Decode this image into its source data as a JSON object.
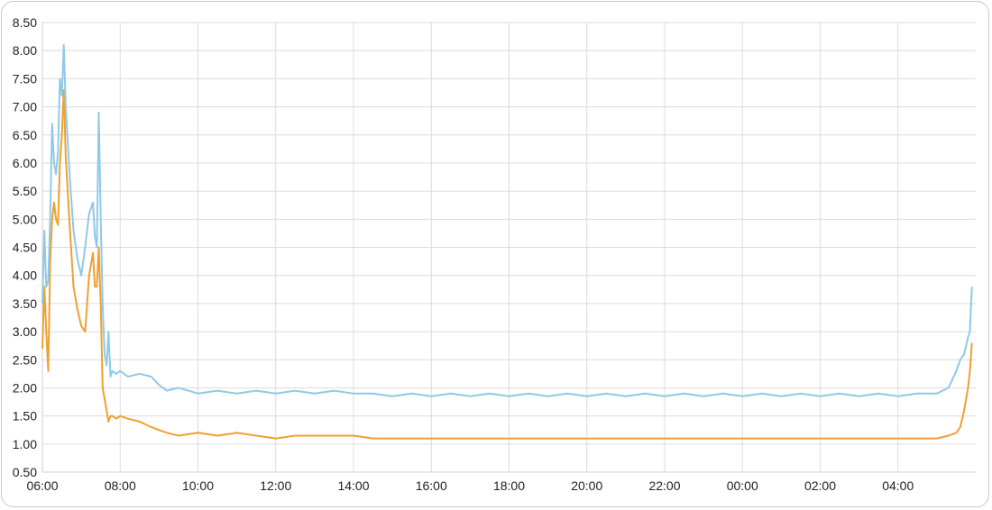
{
  "chart_data": {
    "type": "line",
    "title": "",
    "xlabel": "",
    "ylabel": "",
    "ylim": [
      0.5,
      8.5
    ],
    "grid": true,
    "legend": "none",
    "y_ticks": [
      "0.50",
      "1.00",
      "1.50",
      "2.00",
      "2.50",
      "3.00",
      "3.50",
      "4.00",
      "4.50",
      "5.00",
      "5.50",
      "6.00",
      "6.50",
      "7.00",
      "7.50",
      "8.00",
      "8.50"
    ],
    "x_ticks": [
      "06:00",
      "08:00",
      "10:00",
      "12:00",
      "14:00",
      "16:00",
      "18:00",
      "20:00",
      "22:00",
      "00:00",
      "02:00",
      "04:00"
    ],
    "x_range_hours": [
      0,
      24
    ],
    "series": [
      {
        "color": "#8ecae6",
        "points": [
          [
            0,
            3.5
          ],
          [
            0.05,
            4.8
          ],
          [
            0.1,
            3.8
          ],
          [
            0.15,
            3.9
          ],
          [
            0.2,
            5.0
          ],
          [
            0.25,
            6.7
          ],
          [
            0.3,
            6.0
          ],
          [
            0.35,
            5.8
          ],
          [
            0.4,
            6.2
          ],
          [
            0.45,
            7.5
          ],
          [
            0.5,
            7.2
          ],
          [
            0.55,
            8.1
          ],
          [
            0.6,
            7.0
          ],
          [
            0.7,
            5.8
          ],
          [
            0.8,
            4.8
          ],
          [
            0.9,
            4.3
          ],
          [
            1.0,
            4.0
          ],
          [
            1.1,
            4.5
          ],
          [
            1.2,
            5.1
          ],
          [
            1.3,
            5.3
          ],
          [
            1.35,
            4.7
          ],
          [
            1.4,
            4.5
          ],
          [
            1.45,
            6.9
          ],
          [
            1.5,
            5.0
          ],
          [
            1.55,
            3.5
          ],
          [
            1.6,
            2.6
          ],
          [
            1.65,
            2.4
          ],
          [
            1.7,
            3.0
          ],
          [
            1.75,
            2.2
          ],
          [
            1.8,
            2.3
          ],
          [
            1.9,
            2.25
          ],
          [
            2.0,
            2.3
          ],
          [
            2.2,
            2.2
          ],
          [
            2.5,
            2.25
          ],
          [
            2.8,
            2.2
          ],
          [
            3.0,
            2.05
          ],
          [
            3.2,
            1.95
          ],
          [
            3.5,
            2.0
          ],
          [
            4.0,
            1.9
          ],
          [
            4.5,
            1.95
          ],
          [
            5.0,
            1.9
          ],
          [
            5.5,
            1.95
          ],
          [
            6.0,
            1.9
          ],
          [
            6.5,
            1.95
          ],
          [
            7.0,
            1.9
          ],
          [
            7.5,
            1.95
          ],
          [
            8.0,
            1.9
          ],
          [
            8.5,
            1.9
          ],
          [
            9.0,
            1.85
          ],
          [
            9.5,
            1.9
          ],
          [
            10.0,
            1.85
          ],
          [
            10.5,
            1.9
          ],
          [
            11.0,
            1.85
          ],
          [
            11.5,
            1.9
          ],
          [
            12.0,
            1.85
          ],
          [
            12.5,
            1.9
          ],
          [
            13.0,
            1.85
          ],
          [
            13.5,
            1.9
          ],
          [
            14.0,
            1.85
          ],
          [
            14.5,
            1.9
          ],
          [
            15.0,
            1.85
          ],
          [
            15.5,
            1.9
          ],
          [
            16.0,
            1.85
          ],
          [
            16.5,
            1.9
          ],
          [
            17.0,
            1.85
          ],
          [
            17.5,
            1.9
          ],
          [
            18.0,
            1.85
          ],
          [
            18.5,
            1.9
          ],
          [
            19.0,
            1.85
          ],
          [
            19.5,
            1.9
          ],
          [
            20.0,
            1.85
          ],
          [
            20.5,
            1.9
          ],
          [
            21.0,
            1.85
          ],
          [
            21.5,
            1.9
          ],
          [
            22.0,
            1.85
          ],
          [
            22.5,
            1.9
          ],
          [
            23.0,
            1.9
          ],
          [
            23.3,
            2.0
          ],
          [
            23.5,
            2.3
          ],
          [
            23.6,
            2.5
          ],
          [
            23.7,
            2.6
          ],
          [
            23.8,
            2.9
          ],
          [
            23.85,
            3.0
          ],
          [
            23.9,
            3.8
          ]
        ]
      },
      {
        "color": "#f0a030",
        "points": [
          [
            0,
            2.7
          ],
          [
            0.05,
            3.8
          ],
          [
            0.1,
            3.0
          ],
          [
            0.15,
            2.3
          ],
          [
            0.2,
            4.2
          ],
          [
            0.25,
            5.0
          ],
          [
            0.3,
            5.3
          ],
          [
            0.35,
            5.0
          ],
          [
            0.4,
            4.9
          ],
          [
            0.45,
            6.0
          ],
          [
            0.5,
            6.5
          ],
          [
            0.55,
            7.3
          ],
          [
            0.6,
            6.1
          ],
          [
            0.7,
            4.9
          ],
          [
            0.8,
            3.8
          ],
          [
            0.9,
            3.4
          ],
          [
            1.0,
            3.1
          ],
          [
            1.1,
            3.0
          ],
          [
            1.2,
            4.0
          ],
          [
            1.3,
            4.4
          ],
          [
            1.35,
            3.8
          ],
          [
            1.4,
            3.8
          ],
          [
            1.45,
            4.5
          ],
          [
            1.5,
            3.5
          ],
          [
            1.55,
            2.0
          ],
          [
            1.6,
            1.8
          ],
          [
            1.65,
            1.6
          ],
          [
            1.7,
            1.4
          ],
          [
            1.75,
            1.5
          ],
          [
            1.8,
            1.5
          ],
          [
            1.9,
            1.45
          ],
          [
            2.0,
            1.5
          ],
          [
            2.2,
            1.45
          ],
          [
            2.5,
            1.4
          ],
          [
            2.8,
            1.3
          ],
          [
            3.0,
            1.25
          ],
          [
            3.2,
            1.2
          ],
          [
            3.5,
            1.15
          ],
          [
            4.0,
            1.2
          ],
          [
            4.5,
            1.15
          ],
          [
            5.0,
            1.2
          ],
          [
            5.5,
            1.15
          ],
          [
            6.0,
            1.1
          ],
          [
            6.5,
            1.15
          ],
          [
            7.0,
            1.15
          ],
          [
            7.5,
            1.15
          ],
          [
            8.0,
            1.15
          ],
          [
            8.5,
            1.1
          ],
          [
            9.0,
            1.1
          ],
          [
            9.5,
            1.1
          ],
          [
            10.0,
            1.1
          ],
          [
            10.5,
            1.1
          ],
          [
            11.0,
            1.1
          ],
          [
            11.5,
            1.1
          ],
          [
            12.0,
            1.1
          ],
          [
            12.5,
            1.1
          ],
          [
            13.0,
            1.1
          ],
          [
            13.5,
            1.1
          ],
          [
            14.0,
            1.1
          ],
          [
            14.5,
            1.1
          ],
          [
            15.0,
            1.1
          ],
          [
            15.5,
            1.1
          ],
          [
            16.0,
            1.1
          ],
          [
            16.5,
            1.1
          ],
          [
            17.0,
            1.1
          ],
          [
            17.5,
            1.1
          ],
          [
            18.0,
            1.1
          ],
          [
            18.5,
            1.1
          ],
          [
            19.0,
            1.1
          ],
          [
            19.5,
            1.1
          ],
          [
            20.0,
            1.1
          ],
          [
            20.5,
            1.1
          ],
          [
            21.0,
            1.1
          ],
          [
            21.5,
            1.1
          ],
          [
            22.0,
            1.1
          ],
          [
            22.5,
            1.1
          ],
          [
            23.0,
            1.1
          ],
          [
            23.3,
            1.15
          ],
          [
            23.5,
            1.2
          ],
          [
            23.6,
            1.3
          ],
          [
            23.7,
            1.6
          ],
          [
            23.8,
            2.0
          ],
          [
            23.85,
            2.3
          ],
          [
            23.9,
            2.8
          ]
        ]
      }
    ]
  }
}
